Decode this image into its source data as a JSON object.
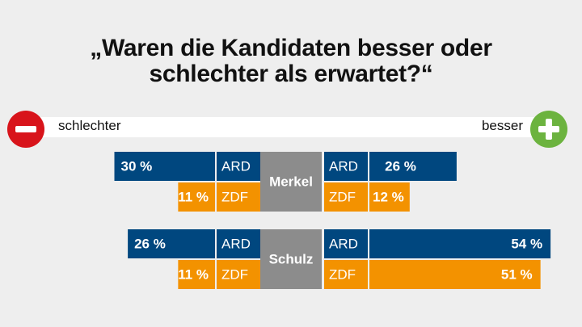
{
  "title": {
    "line1": "„Waren die Kandidaten besser oder",
    "line2": "schlechter als erwartet?“"
  },
  "scale": {
    "worse_label": "schlechter",
    "better_label": "besser"
  },
  "icons": {
    "worse": "minus-icon",
    "better": "plus-icon"
  },
  "colors": {
    "ard": "#00477f",
    "zdf": "#f39200",
    "candidate": "#8c8c8c",
    "worse": "#d8141b",
    "better": "#6cb33f"
  },
  "chart_data": {
    "type": "bar",
    "title": "„Waren die Kandidaten besser oder schlechter als erwartet?“",
    "unit": "%",
    "left_label": "schlechter",
    "right_label": "besser",
    "candidates": [
      {
        "name": "Merkel",
        "rows": [
          {
            "source": "ARD",
            "worse": 30,
            "better": 26,
            "worse_label": "30 %",
            "better_label": "26 %"
          },
          {
            "source": "ZDF",
            "worse": 11,
            "better": 12,
            "worse_label": "11 %",
            "better_label": "12 %"
          }
        ]
      },
      {
        "name": "Schulz",
        "rows": [
          {
            "source": "ARD",
            "worse": 26,
            "better": 54,
            "worse_label": "26 %",
            "better_label": "54 %"
          },
          {
            "source": "ZDF",
            "worse": 11,
            "better": 51,
            "worse_label": "11 %",
            "better_label": "51 %"
          }
        ]
      }
    ]
  }
}
